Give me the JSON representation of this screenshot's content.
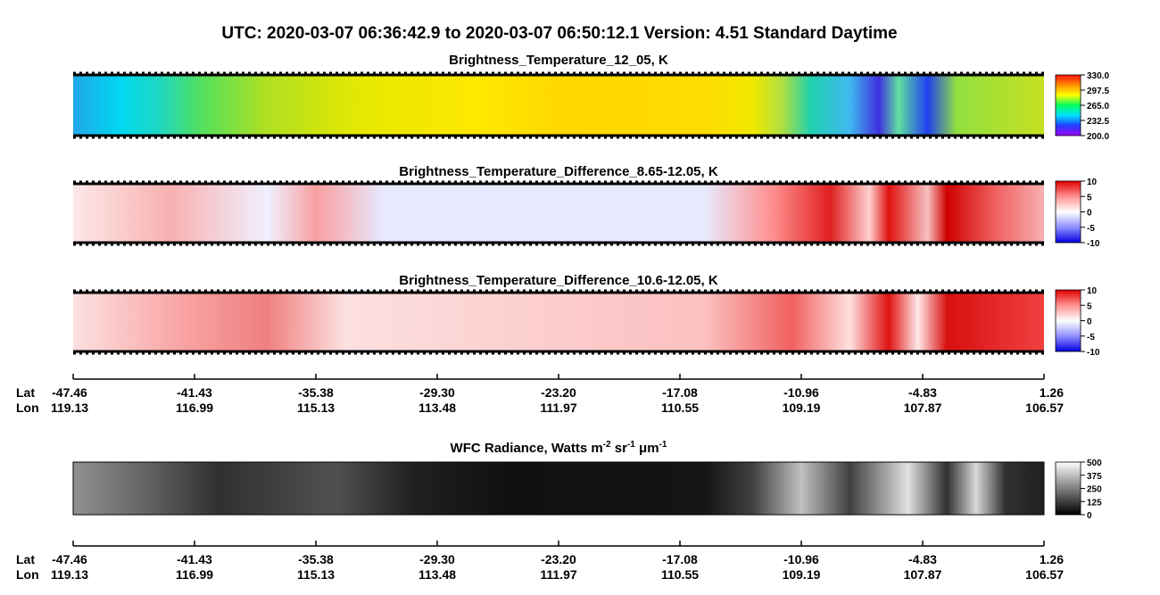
{
  "header": {
    "title": "UTC:  2020-03-07   06:36:42.9  to  2020-03-07   06:50:12.1    Version: 4.51  Standard Daytime"
  },
  "panels": [
    {
      "title": "Brightness_Temperature_12_05, K",
      "colorbar_ticks": [
        "330.0",
        "297.5",
        "265.0",
        "232.5",
        "200.0"
      ],
      "colorbar_colors": [
        "#ff1010",
        "#ff9000",
        "#ffff00",
        "#00ff60",
        "#00e0ff",
        "#2040ff",
        "#a000ff"
      ]
    },
    {
      "title": "Brightness_Temperature_Difference_8.65-12.05, K",
      "colorbar_ticks": [
        "10",
        "5",
        "0",
        "-5",
        "-10"
      ],
      "colorbar_colors": [
        "#e00000",
        "#ff9090",
        "#ffffff",
        "#9090ff",
        "#0000e0"
      ]
    },
    {
      "title": "Brightness_Temperature_Difference_10.6-12.05, K",
      "colorbar_ticks": [
        "10",
        "5",
        "0",
        "-5",
        "-10"
      ],
      "colorbar_colors": [
        "#e00000",
        "#ff9090",
        "#ffffff",
        "#9090ff",
        "#0000e0"
      ]
    },
    {
      "title_parts": [
        "WFC Radiance, Watts m",
        "-2",
        " sr",
        "-1",
        " μm",
        "-1"
      ],
      "colorbar_ticks": [
        "500",
        "375",
        "250",
        "125",
        "0"
      ],
      "colorbar_colors": [
        "#ffffff",
        "#000000"
      ]
    }
  ],
  "axes": [
    {
      "lat_label": "Lat",
      "lon_label": "Lon",
      "lat": [
        "-47.46",
        "-41.43",
        "-35.38",
        "-29.30",
        "-23.20",
        "-17.08",
        "-10.96",
        "-4.83",
        "1.26"
      ],
      "lon": [
        "119.13",
        "116.99",
        "115.13",
        "113.48",
        "111.97",
        "110.55",
        "109.19",
        "107.87",
        "106.57"
      ]
    },
    {
      "lat_label": "Lat",
      "lon_label": "Lon",
      "lat": [
        "-47.46",
        "-41.43",
        "-35.38",
        "-29.30",
        "-23.20",
        "-17.08",
        "-10.96",
        "-4.83",
        "1.26"
      ],
      "lon": [
        "119.13",
        "116.99",
        "115.13",
        "113.48",
        "111.97",
        "110.55",
        "109.19",
        "107.87",
        "106.57"
      ]
    }
  ]
}
